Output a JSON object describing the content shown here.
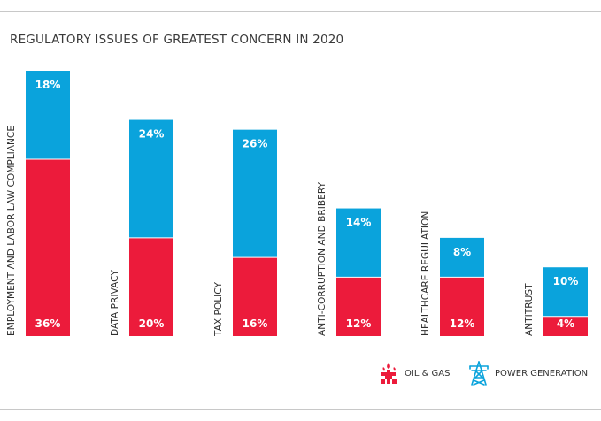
{
  "chart_data": {
    "type": "bar",
    "stacked": true,
    "title": "REGULATORY ISSUES OF GREATEST CONCERN IN 2020",
    "categories": [
      "EMPLOYMENT AND LABOR LAW COMPLIANCE",
      "DATA PRIVACY",
      "TAX POLICY",
      "ANTI-CORRUPTION AND BRIBERY",
      "HEALTHCARE REGULATION",
      "ANTITRUST"
    ],
    "series": [
      {
        "name": "OIL & GAS",
        "color": "#ec1b3b",
        "values": [
          36,
          20,
          16,
          12,
          12,
          4
        ]
      },
      {
        "name": "POWER GENERATION",
        "color": "#0aa3dc",
        "values": [
          18,
          24,
          26,
          14,
          8,
          10
        ]
      }
    ],
    "value_suffix": "%",
    "ylim": [
      0,
      54
    ],
    "legend_position": "bottom-right",
    "grid": false
  },
  "legend": {
    "oil_gas_label": "OIL & GAS",
    "power_label": "POWER GENERATION",
    "oil_gas_icon": "oil-rig-icon",
    "power_icon": "power-tower-icon"
  }
}
